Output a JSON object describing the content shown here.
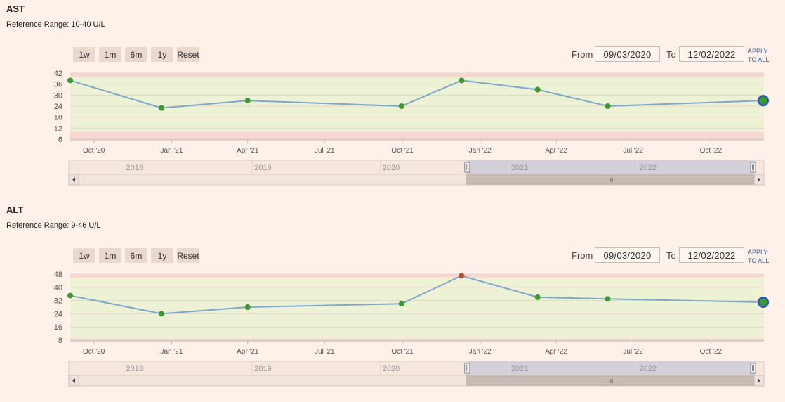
{
  "range_buttons": [
    "1w",
    "1m",
    "6m",
    "1y",
    "Reset"
  ],
  "from_label": "From",
  "to_label": "To",
  "apply_line1": "APPLY",
  "apply_line2": "TO ALL",
  "x_tick_labels": [
    "Oct '20",
    "Jan '21",
    "Apr '21",
    "Jul '21",
    "Oct '21",
    "Jan '22",
    "Apr '22",
    "Jul '22",
    "Oct '22"
  ],
  "navigator_years": [
    "2018",
    "2019",
    "2020",
    "2021",
    "2022"
  ],
  "navigator_scroll_glyph": "III",
  "colors": {
    "line": "#7ea7cf",
    "normal_point": "#3b9a2a",
    "abnormal_point": "#b0522c",
    "last_point_ring": "#2d4fc4",
    "normal_band": "#eef2d4",
    "danger_band": "#f8d6d2",
    "navigator_selection": "#d4d0da"
  },
  "panels": [
    {
      "title": "AST",
      "reference_range": "Reference Range: 10-40 U/L",
      "from_date": "09/03/2020",
      "to_date": "12/02/2022",
      "chart_data": {
        "type": "line",
        "x": [
          "2020-09-03",
          "2020-12-20",
          "2021-04-01",
          "2021-09-30",
          "2021-12-10",
          "2022-03-10",
          "2022-06-01",
          "2022-12-02"
        ],
        "y": [
          38,
          23,
          27,
          24,
          38,
          33,
          24,
          27
        ],
        "ylim": [
          6,
          42
        ],
        "y_ticks": [
          6,
          12,
          18,
          24,
          30,
          36,
          42
        ],
        "reference_range": [
          10,
          40
        ],
        "abnormal_points": []
      }
    },
    {
      "title": "ALT",
      "reference_range": "Reference Range: 9-46 U/L",
      "from_date": "09/03/2020",
      "to_date": "12/02/2022",
      "chart_data": {
        "type": "line",
        "x": [
          "2020-09-03",
          "2020-12-20",
          "2021-04-01",
          "2021-09-30",
          "2021-12-10",
          "2022-03-10",
          "2022-06-01",
          "2022-12-02"
        ],
        "y": [
          35,
          24,
          28,
          30,
          47,
          34,
          33,
          31
        ],
        "ylim": [
          8,
          48
        ],
        "y_ticks": [
          8,
          16,
          24,
          32,
          40,
          48
        ],
        "reference_range": [
          9,
          46
        ],
        "abnormal_points": [
          4
        ]
      }
    }
  ]
}
